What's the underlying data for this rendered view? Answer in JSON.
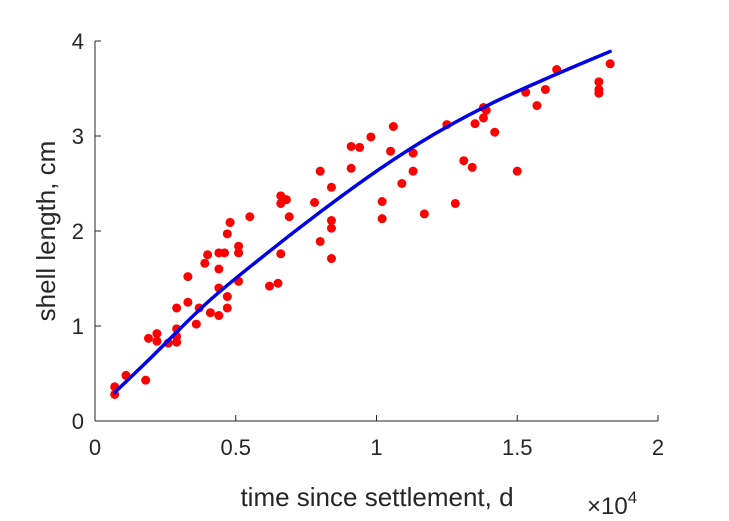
{
  "chart_data": {
    "type": "scatter",
    "title": "",
    "xlabel": "time since settlement, d",
    "ylabel": "shell length, cm",
    "x_multiplier": "×10",
    "x_multiplier_exponent": "4",
    "xlim": [
      0,
      2
    ],
    "ylim": [
      0,
      4
    ],
    "x_ticks": [
      0,
      0.5,
      1,
      1.5,
      2
    ],
    "x_tick_labels": [
      "0",
      "0.5",
      "1",
      "1.5",
      "2"
    ],
    "y_ticks": [
      0,
      1,
      2,
      3,
      4
    ],
    "y_tick_labels": [
      "0",
      "1",
      "2",
      "3",
      "4"
    ],
    "grid": false,
    "legend": "none",
    "colors": {
      "points": "#ff0000",
      "fit": "#0000e6",
      "axis": "#262626"
    },
    "series": [
      {
        "kind": "points",
        "x": [
          0.07,
          0.07,
          0.11,
          0.18,
          0.19,
          0.22,
          0.22,
          0.26,
          0.29,
          0.29,
          0.29,
          0.29,
          0.33,
          0.33,
          0.36,
          0.37,
          0.39,
          0.4,
          0.41,
          0.44,
          0.44,
          0.44,
          0.44,
          0.46,
          0.47,
          0.47,
          0.47,
          0.48,
          0.48,
          0.51,
          0.51,
          0.51,
          0.55,
          0.62,
          0.65,
          0.66,
          0.66,
          0.66,
          0.68,
          0.69,
          0.78,
          0.8,
          0.8,
          0.84,
          0.84,
          0.84,
          0.84,
          0.91,
          0.91,
          0.94,
          0.98,
          1.02,
          1.02,
          1.05,
          1.06,
          1.09,
          1.13,
          1.13,
          1.17,
          1.25,
          1.28,
          1.31,
          1.34,
          1.35,
          1.38,
          1.38,
          1.39,
          1.42,
          1.5,
          1.53,
          1.57,
          1.6,
          1.64,
          1.79,
          1.79,
          1.79,
          1.83
        ],
        "y": [
          0.28,
          0.36,
          0.48,
          0.43,
          0.87,
          0.84,
          0.92,
          0.82,
          0.83,
          0.89,
          0.97,
          1.19,
          1.25,
          1.52,
          1.02,
          1.19,
          1.66,
          1.75,
          1.14,
          1.4,
          1.6,
          1.77,
          1.11,
          1.77,
          1.19,
          1.31,
          1.97,
          2.09,
          2.09,
          1.47,
          1.77,
          1.84,
          2.15,
          1.42,
          1.45,
          1.76,
          2.29,
          2.37,
          2.33,
          2.15,
          2.3,
          1.89,
          2.63,
          1.71,
          2.03,
          2.11,
          2.46,
          2.66,
          2.89,
          2.88,
          2.99,
          2.13,
          2.31,
          2.84,
          3.1,
          2.5,
          2.63,
          2.82,
          2.18,
          3.12,
          2.29,
          2.74,
          2.67,
          3.13,
          3.19,
          3.3,
          3.27,
          3.04,
          2.63,
          3.46,
          3.32,
          3.49,
          3.7,
          3.45,
          3.49,
          3.57,
          3.76
        ]
      },
      {
        "kind": "fit_line",
        "x": [
          0.07,
          0.2,
          0.4,
          0.6,
          0.8,
          1.0,
          1.2,
          1.4,
          1.6,
          1.83
        ],
        "y": [
          0.3,
          0.67,
          1.25,
          1.74,
          2.2,
          2.63,
          3.01,
          3.33,
          3.6,
          3.89
        ]
      }
    ]
  }
}
